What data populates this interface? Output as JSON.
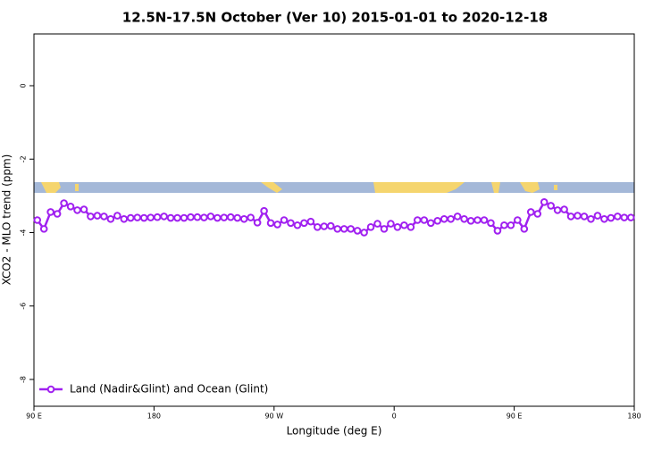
{
  "chart_data": {
    "type": "line",
    "title": "12.5N-17.5N October (Ver 10)   2015-01-01 to 2020-12-18",
    "x_label": "Longitude (deg E)",
    "y_label": "XCO2 - MLO trend (ppm)",
    "xlim": [
      90,
      540
    ],
    "xticks": [
      {
        "value": 90,
        "label": "90 E"
      },
      180,
      {
        "value": 270,
        "label": "90 W"
      },
      {
        "value": 360,
        "label": "0"
      },
      {
        "value": 450,
        "label": "90 E"
      },
      {
        "value": 540,
        "label": "180"
      }
    ],
    "ylim": [
      -8.73,
      1.41
    ],
    "yticks": [
      0,
      -2,
      -4,
      -6,
      -8
    ],
    "legend": "bottom-left",
    "x": [
      92.5,
      97.5,
      102.5,
      107.5,
      112.5,
      117.5,
      122.5,
      127.5,
      132.5,
      137.5,
      142.5,
      147.5,
      152.5,
      157.5,
      162.5,
      167.5,
      172.5,
      177.5,
      182.5,
      187.5,
      192.5,
      197.5,
      202.5,
      207.5,
      212.5,
      217.5,
      222.5,
      227.5,
      232.5,
      237.5,
      242.5,
      247.5,
      252.5,
      257.5,
      262.5,
      267.5,
      272.5,
      277.5,
      282.5,
      287.5,
      292.5,
      297.5,
      302.5,
      307.5,
      312.5,
      317.5,
      322.5,
      327.5,
      332.5,
      337.5,
      342.5,
      347.5,
      352.5,
      357.5,
      362.5,
      367.5,
      372.5,
      377.5,
      382.5,
      387.5,
      392.5,
      397.5,
      402.5,
      407.5,
      412.5,
      417.5,
      422.5,
      427.5,
      432.5,
      437.5,
      442.5,
      447.5,
      452.5,
      457.5,
      462.5,
      467.5,
      472.5,
      477.5,
      482.5,
      487.5,
      492.5,
      497.5,
      502.5,
      507.5,
      512.5,
      517.5,
      522.5,
      527.5,
      532.5,
      537.5
    ],
    "series": [
      {
        "name": "Land (Nadir&Glint) and Ocean (Glint)",
        "color": "#a020f0",
        "values": [
          -3.66,
          -3.9,
          -3.44,
          -3.49,
          -3.2,
          -3.29,
          -3.39,
          -3.37,
          -3.56,
          -3.54,
          -3.56,
          -3.63,
          -3.54,
          -3.63,
          -3.6,
          -3.59,
          -3.6,
          -3.59,
          -3.58,
          -3.56,
          -3.6,
          -3.6,
          -3.6,
          -3.58,
          -3.58,
          -3.59,
          -3.56,
          -3.6,
          -3.59,
          -3.58,
          -3.6,
          -3.63,
          -3.59,
          -3.73,
          -3.41,
          -3.74,
          -3.78,
          -3.66,
          -3.74,
          -3.8,
          -3.74,
          -3.7,
          -3.85,
          -3.83,
          -3.82,
          -3.9,
          -3.9,
          -3.9,
          -3.95,
          -4.0,
          -3.85,
          -3.76,
          -3.9,
          -3.76,
          -3.85,
          -3.8,
          -3.85,
          -3.66,
          -3.66,
          -3.74,
          -3.68,
          -3.63,
          -3.63,
          -3.56,
          -3.63,
          -3.68,
          -3.66,
          -3.66,
          -3.74,
          -3.95,
          -3.8,
          -3.8,
          -3.66,
          -3.9,
          -3.44,
          -3.49,
          -3.17,
          -3.27,
          -3.39,
          -3.37,
          -3.56,
          -3.54,
          -3.56,
          -3.63,
          -3.54,
          -3.63,
          -3.6,
          -3.56,
          -3.59,
          -3.59
        ]
      }
    ]
  }
}
